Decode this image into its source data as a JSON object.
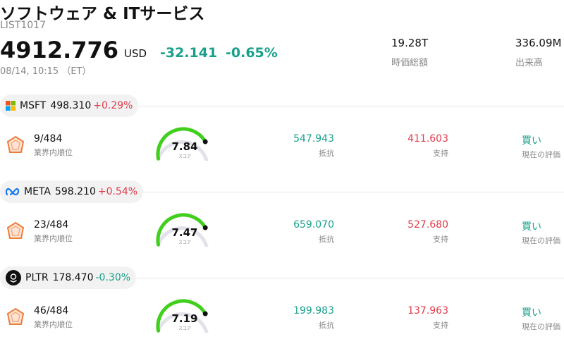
{
  "header": {
    "title": "ソフトウェア & ITサービス",
    "code": "LIST1017",
    "price": "4912.776",
    "currency": "USD",
    "change": "-32.141",
    "change_pct": "-0.65%",
    "datetime": "08/14, 10:15 （ET）",
    "stats": [
      {
        "value": "19.28T",
        "label": "時価総額"
      },
      {
        "value": "336.09M",
        "label": "出来高"
      }
    ]
  },
  "stocks": [
    {
      "ticker": "MSFT",
      "price": "498.310",
      "change_pct": "+0.29%",
      "rank": "9/484",
      "rank_label": "業界内順位",
      "score": "7.84",
      "score_label": "スコア",
      "resistance": "547.943",
      "resistance_label": "抵抗",
      "support": "411.603",
      "support_label": "支持",
      "rating": "買い",
      "rating_label": "現在の評価"
    },
    {
      "ticker": "META",
      "price": "598.210",
      "change_pct": "+0.54%",
      "rank": "23/484",
      "rank_label": "業界内順位",
      "score": "7.47",
      "score_label": "スコア",
      "resistance": "659.070",
      "resistance_label": "抵抗",
      "support": "527.680",
      "support_label": "支持",
      "rating": "買い",
      "rating_label": "現在の評価"
    },
    {
      "ticker": "PLTR",
      "price": "178.470",
      "change_pct": "-0.30%",
      "rank": "46/484",
      "rank_label": "業界内順位",
      "score": "7.19",
      "score_label": "スコア",
      "resistance": "199.983",
      "resistance_label": "抵抗",
      "support": "137.963",
      "support_label": "支持",
      "rating": "買い",
      "rating_label": "現在の評価"
    }
  ]
}
